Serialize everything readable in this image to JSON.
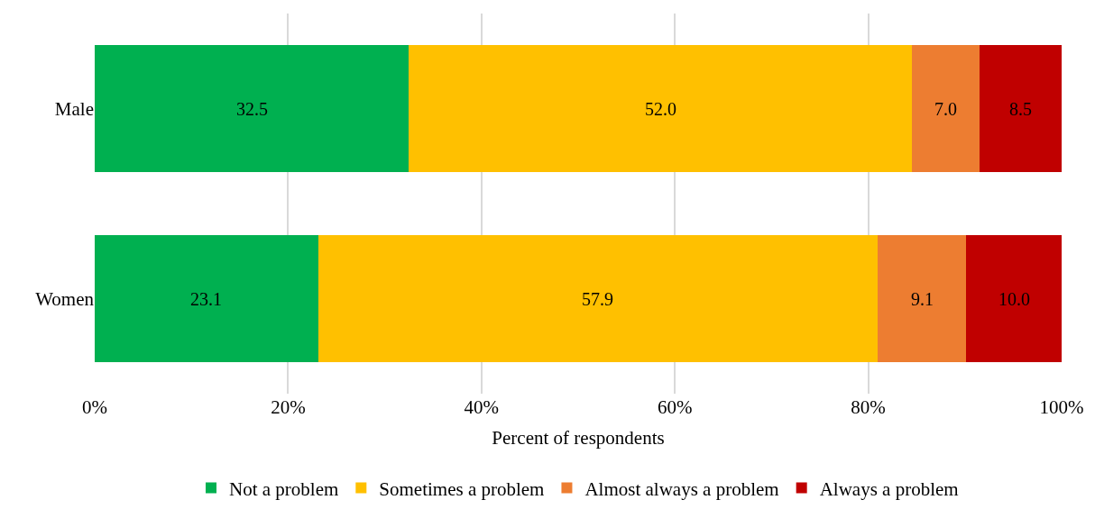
{
  "chart_data": {
    "type": "bar",
    "orientation": "horizontal",
    "stacked": true,
    "xlabel": "Percent of respondents",
    "categories": [
      "Male",
      "Women"
    ],
    "series": [
      {
        "name": "Not a problem",
        "color": "#00b050",
        "values": [
          32.5,
          23.1
        ],
        "value_labels": [
          "32.5",
          "23.1"
        ]
      },
      {
        "name": "Sometimes a problem",
        "color": "#ffc000",
        "values": [
          52.0,
          57.9
        ],
        "value_labels": [
          "52.0",
          "57.9"
        ]
      },
      {
        "name": "Almost always a problem",
        "color": "#ed7d31",
        "values": [
          7.0,
          9.1
        ],
        "value_labels": [
          "7.0",
          "9.1"
        ]
      },
      {
        "name": "Always a problem",
        "color": "#c00000",
        "values": [
          8.5,
          10.0
        ],
        "value_labels": [
          "8.5",
          "10.0"
        ]
      }
    ],
    "xlim": [
      0,
      100
    ],
    "xticks": [
      {
        "value": 0,
        "label": "0%"
      },
      {
        "value": 20,
        "label": "20%"
      },
      {
        "value": 40,
        "label": "40%"
      },
      {
        "value": 60,
        "label": "60%"
      },
      {
        "value": 80,
        "label": "80%"
      },
      {
        "value": 100,
        "label": "100%"
      }
    ],
    "grid": "x",
    "legend": "bottom"
  }
}
